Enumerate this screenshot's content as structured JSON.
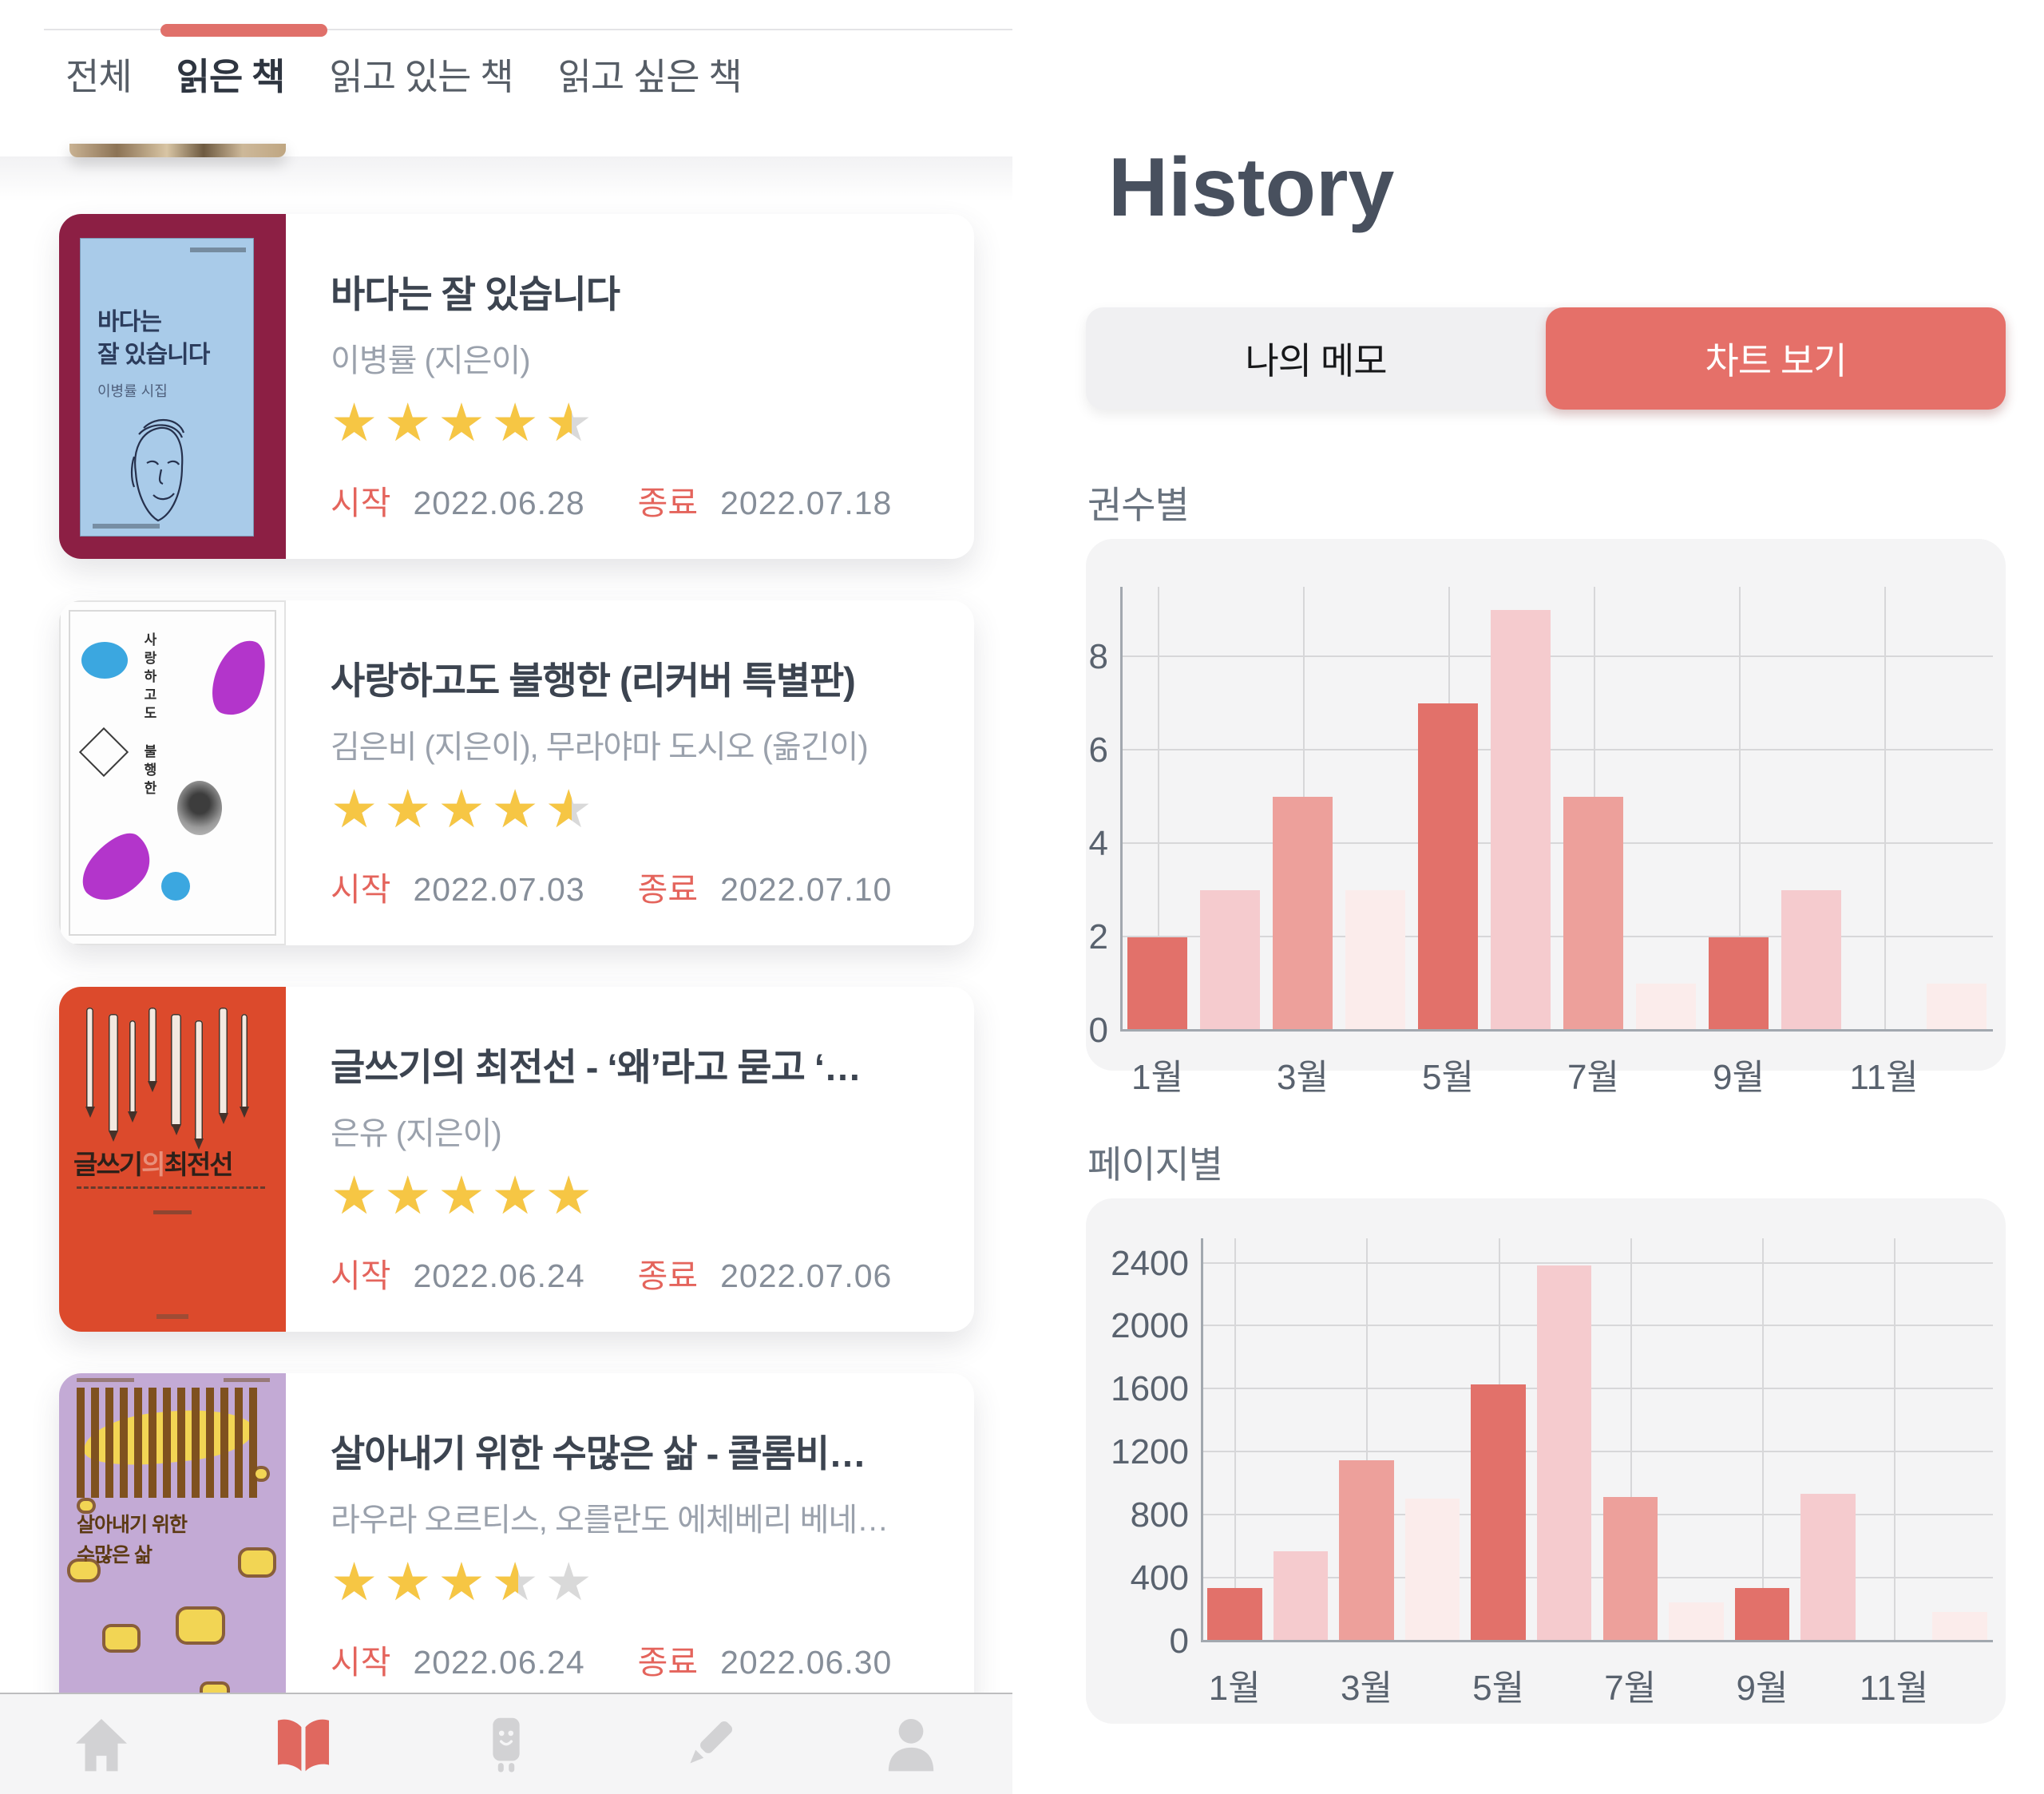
{
  "app": {
    "tabs": [
      {
        "label": "전체",
        "active": false
      },
      {
        "label": "읽은 책",
        "active": true
      },
      {
        "label": "읽고 있는 책",
        "active": false
      },
      {
        "label": "읽고 싶은 책",
        "active": false
      }
    ],
    "books": [
      {
        "title": "바다는 잘 있습니다",
        "authors": "이병률 (지은이)",
        "rating": 4.5,
        "start_label": "시작",
        "start_date": "2022.06.28",
        "end_label": "종료",
        "end_date": "2022.07.18",
        "cover_style": "sea",
        "cover": {
          "title_lines": [
            "바다는",
            "잘 있습니다"
          ],
          "subtitle": "이병률 시집"
        }
      },
      {
        "title": "사랑하고도 불행한 (리커버 특별판)",
        "authors": "김은비 (지은이), 무라야마 도시오 (옮긴이)",
        "rating": 4.5,
        "start_label": "시작",
        "start_date": "2022.07.03",
        "end_label": "종료",
        "end_date": "2022.07.10",
        "cover_style": "love",
        "cover": {
          "vertical_title": "사랑하고도 불행한"
        }
      },
      {
        "title": "글쓰기의 최전선 - ‘왜’라고 묻고 ‘…",
        "authors": "은유 (지은이)",
        "rating": 5,
        "start_label": "시작",
        "start_date": "2022.06.24",
        "end_label": "종료",
        "end_date": "2022.07.06",
        "cover_style": "writing",
        "cover": {
          "title_head": "글쓰기",
          "title_mid": "의",
          "title_tail": "최전선"
        }
      },
      {
        "title": "살아내기 위한 수많은 삶 - 콜롬비…",
        "authors": "라우라 오르티스, 오를란도 에체베리 베네…",
        "rating": 3.5,
        "start_label": "시작",
        "start_date": "2022.06.24",
        "end_label": "종료",
        "end_date": "2022.06.30",
        "cover_style": "lives",
        "cover": {
          "title_lines": [
            "살아내기 위한",
            "수많은 삶"
          ]
        }
      }
    ],
    "nav": [
      {
        "icon": "home-icon",
        "active": false
      },
      {
        "icon": "book-icon",
        "active": true
      },
      {
        "icon": "character-icon",
        "active": false
      },
      {
        "icon": "pencil-icon",
        "active": false
      },
      {
        "icon": "profile-icon",
        "active": false
      }
    ]
  },
  "history": {
    "title": "History",
    "segments": [
      {
        "label": "나의 메모",
        "active": false
      },
      {
        "label": "차트 보기",
        "active": true
      }
    ]
  },
  "chart_data": [
    {
      "type": "bar",
      "title": "권수별",
      "categories": [
        "1월",
        "2월",
        "3월",
        "4월",
        "5월",
        "6월",
        "7월",
        "8월",
        "9월",
        "10월",
        "11월",
        "12월"
      ],
      "values": [
        2,
        3,
        5,
        3,
        7,
        9,
        5,
        1,
        2,
        3,
        0,
        1
      ],
      "yticks": [
        0,
        2,
        4,
        6,
        8
      ],
      "ylim": [
        0,
        9.5
      ],
      "x_tick_labels": [
        "1월",
        "3월",
        "5월",
        "7월",
        "9월",
        "11월"
      ],
      "grid": true,
      "legend": "none",
      "bar_color_cycle": [
        "#e2716a",
        "#f5cbce",
        "#eda09b",
        "#fbeceb"
      ]
    },
    {
      "type": "bar",
      "title": "페이지별",
      "categories": [
        "1월",
        "2월",
        "3월",
        "4월",
        "5월",
        "6월",
        "7월",
        "8월",
        "9월",
        "10월",
        "11월",
        "12월"
      ],
      "values": [
        340,
        575,
        1150,
        910,
        1630,
        2390,
        920,
        250,
        340,
        940,
        0,
        190
      ],
      "yticks": [
        0,
        400,
        800,
        1200,
        1600,
        2000,
        2400
      ],
      "ylim": [
        0,
        2560
      ],
      "x_tick_labels": [
        "1월",
        "3월",
        "5월",
        "7월",
        "9월",
        "11월"
      ],
      "grid": true,
      "legend": "none",
      "bar_color_cycle": [
        "#e2716a",
        "#f5cbce",
        "#eda09b",
        "#fbeceb"
      ]
    }
  ],
  "colors": {
    "accent": "#e0706a",
    "segment_active": "#e57069",
    "star_yellow": "#f6c644",
    "star_gray": "#d9d9d9",
    "date_label": "#e4645c",
    "text_dark": "#3c4450",
    "text_gray": "#9aa1ac",
    "chart_card_bg": "#f4f4f5"
  }
}
